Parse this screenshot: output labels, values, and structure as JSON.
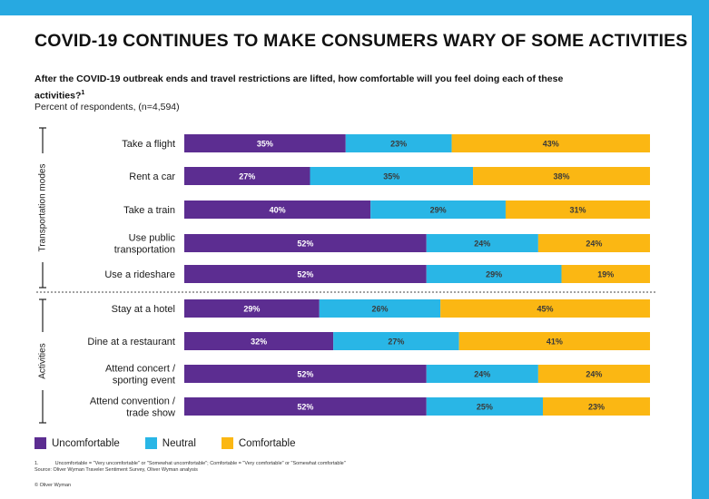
{
  "title": "COVID-19 CONTINUES TO MAKE CONSUMERS WARY OF SOME ACTIVITIES",
  "subtitle": "After the COVID-19 outbreak ends and travel restrictions are lifted, how comfortable will you feel doing each of these activities?",
  "subtitle_sup": "1",
  "note": "Percent of respondents, (n=4,594)",
  "colors": {
    "uncomfortable": "#5c2d91",
    "neutral": "#29b6e6",
    "comfortable": "#fbb713",
    "frame": "#27a9e1"
  },
  "chart_data": {
    "type": "bar",
    "orientation": "horizontal",
    "stacked": true,
    "groups": [
      {
        "label": "Transportation modes",
        "categories": [
          "Take a flight",
          "Rent a car",
          "Take a train",
          "Use public transportation",
          "Use a rideshare"
        ]
      },
      {
        "label": "Activities",
        "categories": [
          "Stay at a hotel",
          "Dine at a restaurant",
          "Attend concert / sporting event",
          "Attend convention / trade show"
        ]
      }
    ],
    "categories": [
      "Take a flight",
      "Rent a car",
      "Take a train",
      "Use public transportation",
      "Use a rideshare",
      "Stay at a hotel",
      "Dine at a restaurant",
      "Attend concert / sporting event",
      "Attend convention / trade show"
    ],
    "category_lines": [
      [
        "Take a flight"
      ],
      [
        "Rent a car"
      ],
      [
        "Take a train"
      ],
      [
        "Use public",
        "transportation"
      ],
      [
        "Use a rideshare"
      ],
      [
        "Stay at a hotel"
      ],
      [
        "Dine at a restaurant"
      ],
      [
        "Attend concert /",
        "sporting event"
      ],
      [
        "Attend convention /",
        "trade show"
      ]
    ],
    "series": [
      {
        "name": "Uncomfortable",
        "color": "#5c2d91",
        "values": [
          35,
          27,
          40,
          52,
          52,
          29,
          32,
          52,
          52
        ]
      },
      {
        "name": "Neutral",
        "color": "#29b6e6",
        "values": [
          23,
          35,
          29,
          24,
          29,
          26,
          27,
          24,
          25
        ]
      },
      {
        "name": "Comfortable",
        "color": "#fbb713",
        "values": [
          43,
          38,
          31,
          24,
          19,
          45,
          41,
          24,
          23
        ]
      }
    ],
    "value_suffix": "%",
    "legend_position": "bottom-left"
  },
  "footnote_number": "1.",
  "footnote_text": "Uncomfortable = \"Very uncomfortable\" or \"Somewhat uncomfortable\"; Comfortable = \"Very comfortable\" or \"Somewhat comfortable\"",
  "source": "Source: Oliver Wyman Traveler Sentiment Survey, Oliver Wyman analysis",
  "copyright": "© Oliver Wyman"
}
